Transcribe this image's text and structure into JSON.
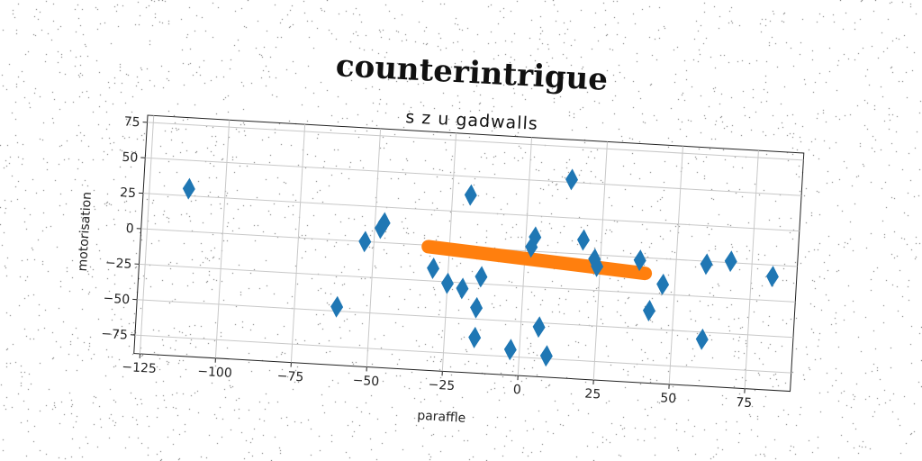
{
  "chart_data": {
    "type": "scatter",
    "title": "counterintrigue",
    "subtitle": "s z u gadwalls",
    "xlabel": "paraffle",
    "ylabel": "motorisation",
    "xlim": [
      -127,
      90
    ],
    "ylim": [
      -88,
      80
    ],
    "xticks": [
      -125,
      -100,
      -75,
      -50,
      -25,
      0,
      25,
      50,
      75
    ],
    "yticks": [
      -75,
      -50,
      -25,
      0,
      25,
      50,
      75
    ],
    "tick_labels_x": [
      "−125",
      "−100",
      "−75",
      "−50",
      "−25",
      "0",
      "25",
      "50",
      "75"
    ],
    "tick_labels_y": [
      "−75",
      "−50",
      "−25",
      "0",
      "25",
      "50",
      "75"
    ],
    "grid": true,
    "series": [
      {
        "marker": "diamond",
        "color": "#1f77b4",
        "points": [
          [
            -112,
            30
          ],
          [
            -61,
            -47
          ],
          [
            -53,
            0
          ],
          [
            -48,
            10
          ],
          [
            -47,
            14
          ],
          [
            -30,
            -16
          ],
          [
            -25,
            -26
          ],
          [
            -20,
            -29
          ],
          [
            -19,
            37
          ],
          [
            -14,
            -20
          ],
          [
            -15,
            -42
          ],
          [
            -15,
            -63
          ],
          [
            -3,
            -70
          ],
          [
            2,
            3
          ],
          [
            3,
            10
          ],
          [
            6,
            -53
          ],
          [
            9,
            -73
          ],
          [
            14,
            52
          ],
          [
            19,
            10
          ],
          [
            23,
            -3
          ],
          [
            24,
            -8
          ],
          [
            38,
            -2
          ],
          [
            42,
            -37
          ],
          [
            46,
            -18
          ],
          [
            60,
            -2
          ],
          [
            68,
            1
          ],
          [
            82,
            -8
          ],
          [
            60,
            -55
          ]
        ]
      },
      {
        "type": "line",
        "color": "#ff7f0e",
        "points": [
          [
            -32,
            -1
          ],
          [
            40,
            -11
          ]
        ]
      }
    ]
  }
}
